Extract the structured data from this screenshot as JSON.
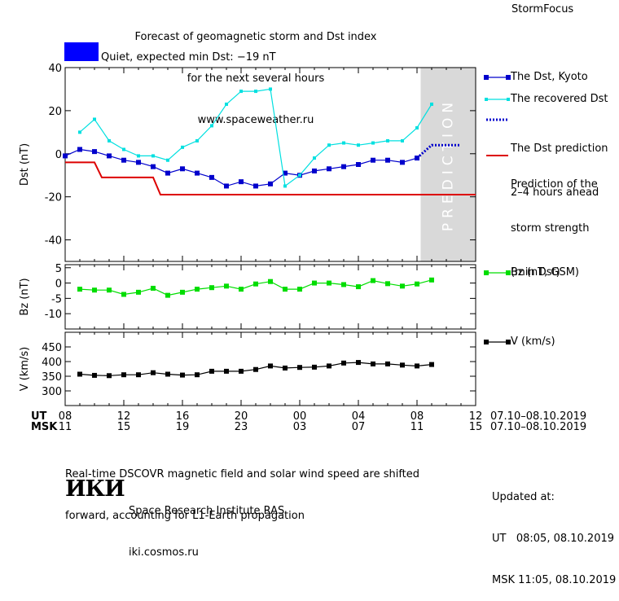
{
  "header": {
    "title_lines": [
      "Forecast of geomagnetic storm and Dst index",
      "for the next several hours",
      "www.spaceweather.ru"
    ],
    "brand": "StormFocus"
  },
  "status": {
    "color": "#0000ff",
    "text": "Quiet, expected min Dst: −19 nT"
  },
  "legend": {
    "dst_kyoto": "The Dst, Kyoto",
    "recovered_dst": "The recovered Dst",
    "dst_prediction": [
      "The Dst prediction",
      "2–4 hours ahead"
    ],
    "storm_strength": [
      "Prediction of the",
      "storm strength",
      "(min Dst)"
    ],
    "bz": "Bz (nT, GSM)",
    "v": "V (km/s)"
  },
  "x_axis": {
    "ut_label": "UT",
    "msk_label": "MSK",
    "ut_ticks": [
      "08",
      "12",
      "16",
      "20",
      "00",
      "04",
      "08",
      "12"
    ],
    "msk_ticks": [
      "11",
      "15",
      "19",
      "23",
      "03",
      "07",
      "11",
      "15"
    ],
    "ut_range": "07.10–08.10.2019",
    "msk_range": "07.10–08.10.2019"
  },
  "footer": {
    "note_lines": [
      "Real-time DSCOVR magnetic field and solar wind speed are shifted",
      "forward, accounting for L1-Earth propagation"
    ],
    "logo": "ИКИ",
    "org_lines": [
      "Space Research Institute RAS",
      "iki.cosmos.ru"
    ],
    "updated_lines": [
      "Updated at:",
      "UT   08:05, 08.10.2019",
      "MSK 11:05, 08.10.2019"
    ]
  },
  "chart_data": [
    {
      "type": "line",
      "ylabel": "Dst (nT)",
      "ylim": [
        -50,
        40
      ],
      "yticks": [
        40,
        20,
        0,
        -20,
        -40
      ],
      "x_unit": "hours after 07.10 08:00 UT",
      "xlim": [
        0,
        28
      ],
      "prediction_band": {
        "x": [
          24.25,
          28
        ],
        "label": "PREDICTION",
        "color": "#d9d9d9"
      },
      "series": [
        {
          "name": "The Dst, Kyoto",
          "color": "#0000cc",
          "x": [
            0,
            1,
            2,
            3,
            4,
            5,
            6,
            7,
            8,
            9,
            10,
            11,
            12,
            13,
            14,
            15,
            16,
            17,
            18,
            19,
            20,
            21,
            22,
            23,
            24
          ],
          "values": [
            -1,
            2,
            1,
            -1,
            -3,
            -4,
            -6,
            -9,
            -7,
            -9,
            -11,
            -15,
            -13,
            -15,
            -14,
            -9,
            -10,
            -8,
            -7,
            -6,
            -5,
            -3,
            -3,
            -4,
            -2
          ]
        },
        {
          "name": "The recovered Dst",
          "color": "#00e0e0",
          "x": [
            1,
            2,
            3,
            4,
            5,
            6,
            7,
            8,
            9,
            10,
            11,
            12,
            13,
            14,
            15,
            16,
            17,
            18,
            19,
            20,
            21,
            22,
            23,
            24,
            25
          ],
          "values": [
            10,
            16,
            6,
            2,
            -1,
            -1,
            -3,
            3,
            6,
            13,
            23,
            29,
            29,
            30,
            -15,
            -10,
            -2,
            4,
            5,
            4,
            5,
            6,
            6,
            12,
            23
          ]
        },
        {
          "name": "The Dst prediction 2–4 hours ahead",
          "color": "#0000cc",
          "x": [
            24,
            25,
            26,
            27
          ],
          "values": [
            -2,
            4,
            4,
            4
          ]
        },
        {
          "name": "Prediction of the storm strength (min Dst)",
          "color": "#dd0000",
          "x": [
            0,
            2,
            2.5,
            6,
            6.5,
            28
          ],
          "values": [
            -4,
            -4,
            -11,
            -11,
            -19,
            -19
          ]
        }
      ]
    },
    {
      "type": "line",
      "ylabel": "Bz (nT)",
      "ylim": [
        -15,
        6
      ],
      "yticks": [
        5,
        0,
        -5,
        -10
      ],
      "x_unit": "hours after 07.10 08:00 UT",
      "xlim": [
        0,
        28
      ],
      "series": [
        {
          "name": "Bz (nT, GSM)",
          "color": "#00dd00",
          "x": [
            1,
            2,
            3,
            4,
            5,
            6,
            7,
            8,
            9,
            10,
            11,
            12,
            13,
            14,
            15,
            16,
            17,
            18,
            19,
            20,
            21,
            22,
            23,
            24,
            25
          ],
          "values": [
            -2,
            -2.3,
            -2.3,
            -3.7,
            -3,
            -1.7,
            -4,
            -3,
            -2,
            -1.5,
            -1,
            -2,
            -0.3,
            0.5,
            -2,
            -2,
            0,
            0,
            -0.5,
            -1.2,
            0.8,
            -0.2,
            -1,
            -0.3,
            1
          ]
        }
      ]
    },
    {
      "type": "line",
      "ylabel": "V (km/s)",
      "ylim": [
        250,
        500
      ],
      "yticks": [
        450,
        400,
        350,
        300
      ],
      "x_unit": "hours after 07.10 08:00 UT",
      "xlim": [
        0,
        28
      ],
      "series": [
        {
          "name": "V (km/s)",
          "color": "#000000",
          "x": [
            1,
            2,
            3,
            4,
            5,
            6,
            7,
            8,
            9,
            10,
            11,
            12,
            13,
            14,
            15,
            16,
            17,
            18,
            19,
            20,
            21,
            22,
            23,
            24,
            25
          ],
          "values": [
            357,
            353,
            352,
            355,
            355,
            362,
            357,
            354,
            355,
            367,
            367,
            367,
            373,
            385,
            378,
            380,
            381,
            385,
            395,
            397,
            392,
            392,
            388,
            385,
            390
          ]
        }
      ]
    }
  ]
}
